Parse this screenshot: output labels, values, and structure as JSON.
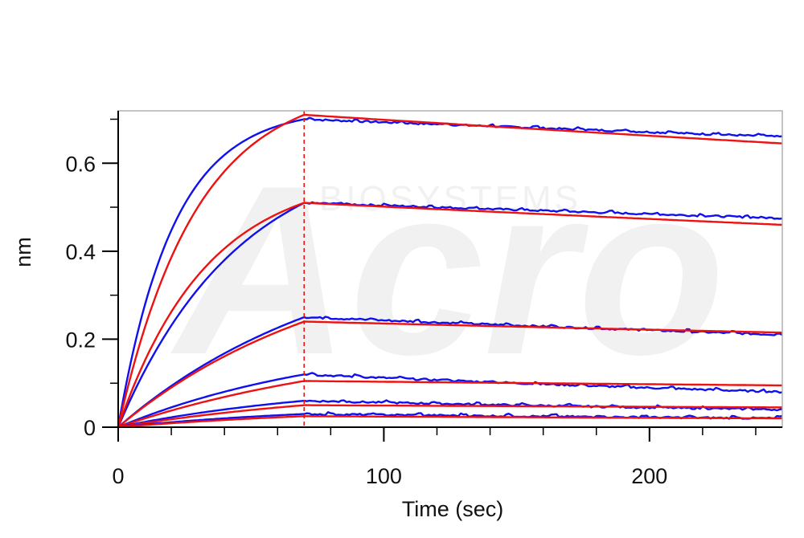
{
  "chart_data": {
    "type": "line",
    "title": "",
    "xlabel": "Time (sec)",
    "ylabel": "nm",
    "xlim": [
      0,
      250
    ],
    "ylim": [
      0,
      0.71
    ],
    "xticks": [
      0,
      100,
      200
    ],
    "yticks": [
      0,
      0.2,
      0.4,
      0.6
    ],
    "x_minor_step": 20,
    "y_minor_step": 0.1,
    "dissociation_start": 70,
    "grid": false,
    "legend": "none",
    "watermark": {
      "word": "Acro",
      "sub": "BIOSYSTEMS"
    },
    "series": [
      {
        "role": "measured",
        "color": "#1010ee",
        "association_end": 0.7,
        "dissociation_end": 0.66,
        "kon": 0.048
      },
      {
        "role": "fit",
        "color": "#ee1111",
        "association_end": 0.71,
        "dissociation_end": 0.645,
        "kon": 0.034
      },
      {
        "role": "measured",
        "color": "#1010ee",
        "association_end": 0.51,
        "dissociation_end": 0.475,
        "kon": 0.022
      },
      {
        "role": "fit",
        "color": "#ee1111",
        "association_end": 0.51,
        "dissociation_end": 0.46,
        "kon": 0.03
      },
      {
        "role": "measured",
        "color": "#1010ee",
        "association_end": 0.25,
        "dissociation_end": 0.21,
        "kon": 0.012
      },
      {
        "role": "fit",
        "color": "#ee1111",
        "association_end": 0.24,
        "dissociation_end": 0.215,
        "kon": 0.012
      },
      {
        "role": "measured",
        "color": "#1010ee",
        "association_end": 0.12,
        "dissociation_end": 0.08,
        "kon": 0.012
      },
      {
        "role": "fit",
        "color": "#ee1111",
        "association_end": 0.105,
        "dissociation_end": 0.095,
        "kon": 0.01
      },
      {
        "role": "measured",
        "color": "#1010ee",
        "association_end": 0.06,
        "dissociation_end": 0.04,
        "kon": 0.012
      },
      {
        "role": "fit",
        "color": "#ee1111",
        "association_end": 0.05,
        "dissociation_end": 0.045,
        "kon": 0.01
      },
      {
        "role": "measured",
        "color": "#1010ee",
        "association_end": 0.03,
        "dissociation_end": 0.02,
        "kon": 0.012
      },
      {
        "role": "fit",
        "color": "#ee1111",
        "association_end": 0.025,
        "dissociation_end": 0.02,
        "kon": 0.01
      }
    ]
  }
}
